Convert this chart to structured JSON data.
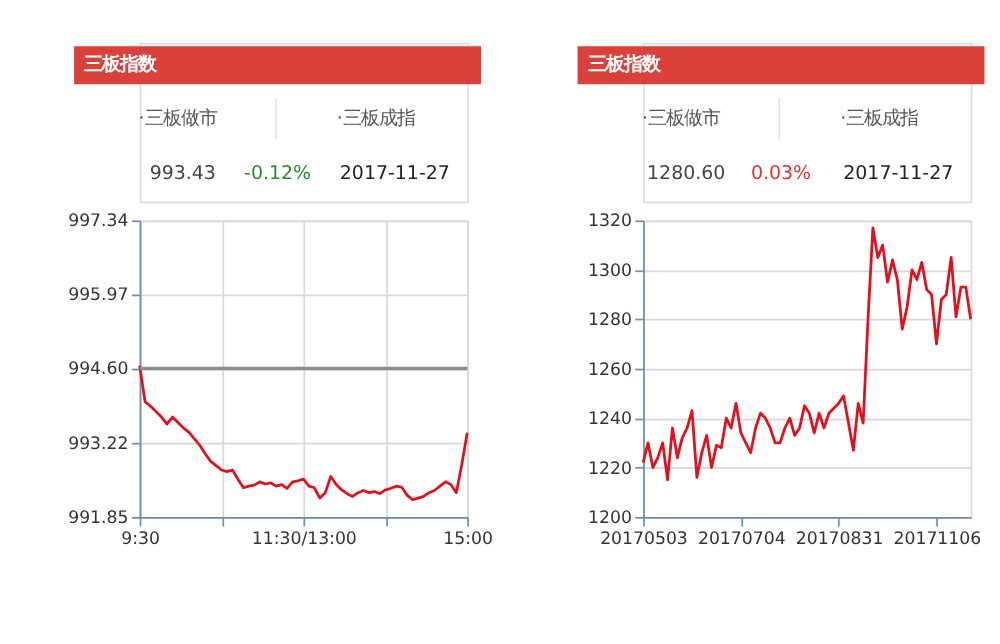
{
  "chart_data": [
    {
      "type": "line",
      "title": "三板指数",
      "annotations": [
        "·三板做市",
        "·三板成指",
        "993.43",
        "-0.12%",
        "2017-11-27"
      ],
      "categories": [
        "9:30",
        null,
        null,
        null,
        null,
        null,
        null,
        null,
        null,
        null,
        null,
        null,
        null,
        null,
        null,
        null,
        null,
        null,
        null,
        null,
        null,
        null,
        null,
        null,
        null,
        null,
        null,
        null,
        null,
        null,
        "11:30/13:00",
        null,
        null,
        null,
        null,
        null,
        null,
        null,
        null,
        null,
        null,
        null,
        null,
        null,
        null,
        null,
        null,
        null,
        null,
        null,
        null,
        null,
        null,
        null,
        null,
        null,
        null,
        null,
        null,
        null,
        "15:00"
      ],
      "series": [
        {
          "color": "#e3101c",
          "values": [
            994.65,
            993.98,
            993.9,
            993.8,
            993.7,
            993.57,
            993.7,
            993.6,
            993.5,
            993.42,
            993.3,
            993.18,
            993.02,
            992.88,
            992.8,
            992.72,
            992.69,
            992.72,
            992.55,
            992.39,
            992.42,
            992.44,
            992.5,
            992.46,
            992.48,
            992.42,
            992.45,
            992.38,
            992.5,
            992.52,
            992.55,
            992.42,
            992.39,
            992.2,
            992.3,
            992.6,
            992.45,
            992.35,
            992.28,
            992.23,
            992.3,
            992.34,
            992.3,
            992.32,
            992.28,
            992.35,
            992.38,
            992.42,
            992.4,
            992.25,
            992.17,
            992.2,
            992.23,
            992.3,
            992.34,
            992.42,
            992.5,
            992.45,
            992.3,
            992.82,
            993.41
          ]
        }
      ],
      "ylim": [
        991.85,
        997.34
      ],
      "yticks": [
        991.85,
        993.22,
        {
          "value": 994.6,
          "label": "994.60"
        },
        995.97,
        997.34
      ],
      "ref_lines": [
        {
          "axis": "y",
          "value": 994.6,
          "color": "#8c8c8c"
        }
      ],
      "grid": true
    },
    {
      "type": "line",
      "title": "三板指数",
      "annotations": [
        "·三板做市",
        "·三板成指",
        "1280.60",
        "0.03%",
        "2017-11-27"
      ],
      "categories": [
        "20170503",
        null,
        null,
        null,
        null,
        null,
        null,
        null,
        null,
        null,
        null,
        null,
        null,
        null,
        null,
        null,
        null,
        null,
        null,
        null,
        "20170704",
        null,
        null,
        null,
        null,
        null,
        null,
        null,
        null,
        null,
        null,
        null,
        null,
        null,
        null,
        null,
        null,
        null,
        null,
        null,
        "20170831",
        null,
        null,
        null,
        null,
        null,
        null,
        null,
        null,
        null,
        null,
        null,
        null,
        null,
        null,
        null,
        null,
        null,
        null,
        null,
        "20171106",
        null,
        null,
        null,
        null,
        null,
        null,
        null
      ],
      "series": [
        {
          "color": "#e3101c",
          "values": [
            1222,
            1230,
            1220,
            1224,
            1230,
            1215,
            1236,
            1224,
            1232,
            1236,
            1243,
            1216,
            1226,
            1233,
            1220,
            1229,
            1228,
            1240,
            1236,
            1246,
            1234,
            1230,
            1226,
            1236,
            1242,
            1240,
            1236,
            1230,
            1230,
            1236,
            1240,
            1233,
            1236,
            1245,
            1242,
            1234,
            1242,
            1236,
            1242,
            1244,
            1246,
            1249,
            1238,
            1227,
            1246,
            1238,
            1280,
            1317,
            1305,
            1310,
            1295,
            1304,
            1296,
            1276,
            1285,
            1300,
            1296,
            1303,
            1292,
            1290,
            1270,
            1288,
            1290,
            1305,
            1281,
            1293,
            1293,
            1280
          ]
        }
      ],
      "ylim": [
        1200,
        1320
      ],
      "yticks": [
        1200,
        1220,
        1240,
        1260,
        1280,
        1300,
        1320
      ],
      "grid": "y"
    }
  ]
}
